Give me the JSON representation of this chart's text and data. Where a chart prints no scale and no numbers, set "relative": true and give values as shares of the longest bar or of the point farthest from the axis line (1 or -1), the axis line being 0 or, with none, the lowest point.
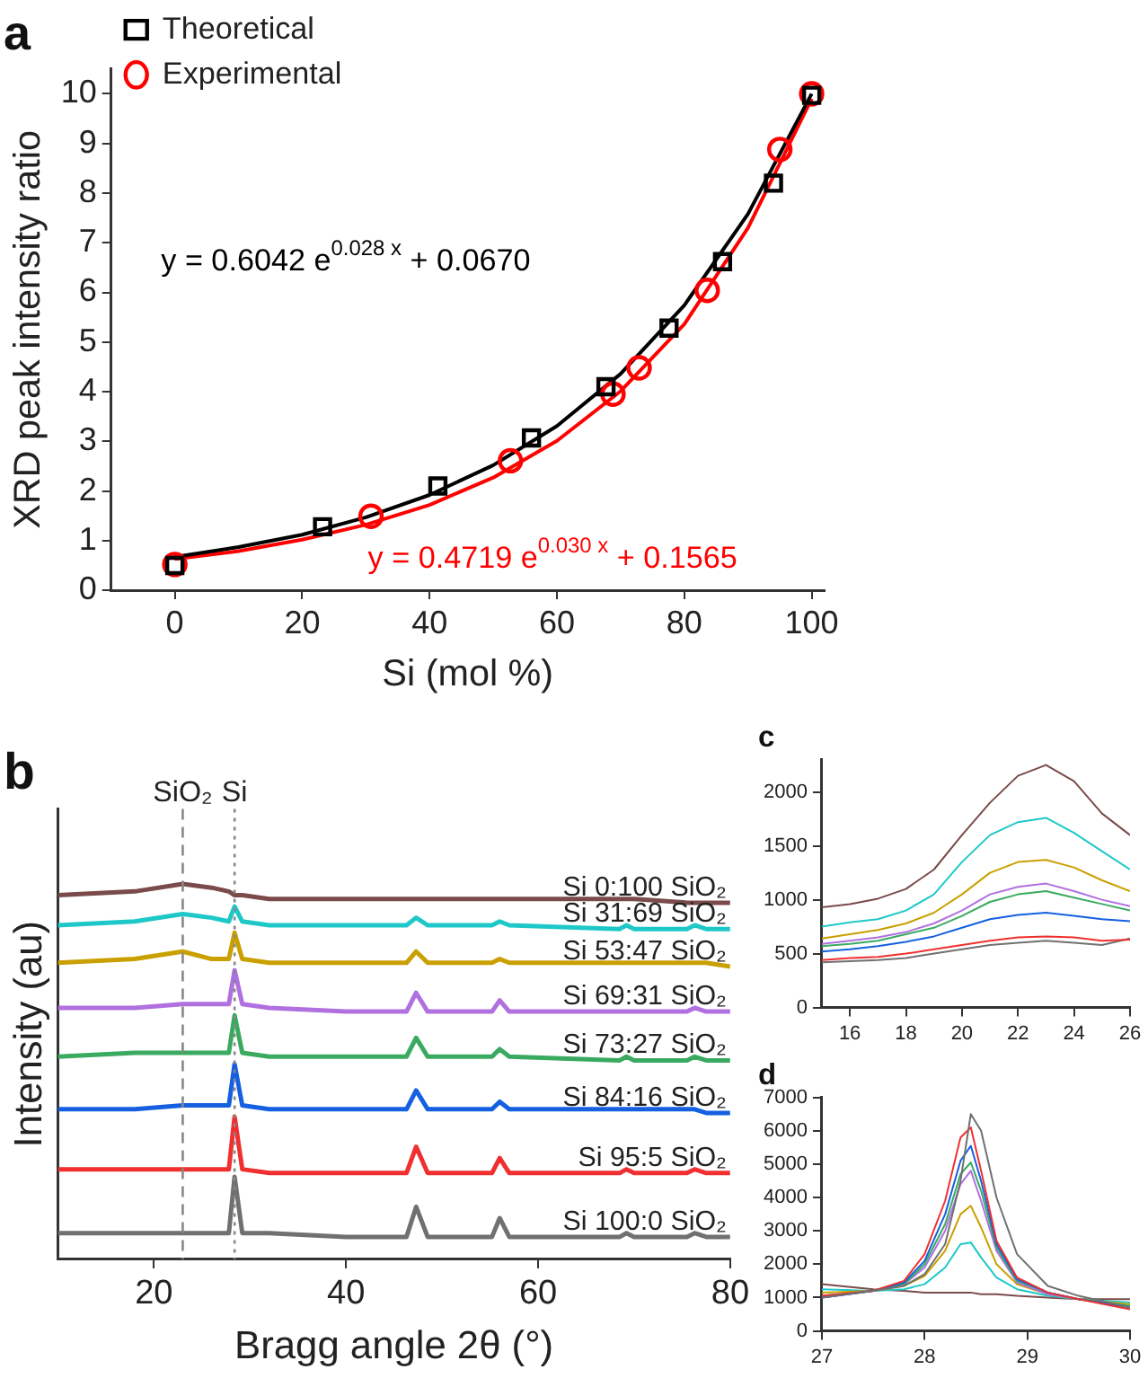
{
  "chart_data": [
    {
      "type": "scatter",
      "title": "a",
      "xlabel": "Si (mol %)",
      "ylabel": "XRD peak intensity ratio",
      "xlim": [
        -10,
        102
      ],
      "ylim": [
        0,
        10.5
      ],
      "xticks": [
        0,
        20,
        40,
        60,
        80,
        100
      ],
      "yticks": [
        0,
        1,
        2,
        3,
        4,
        5,
        6,
        7,
        8,
        9,
        10
      ],
      "legend": "top left",
      "grid": false,
      "series": [
        {
          "name": "Theoretical",
          "color": "#000000",
          "marker": "square",
          "x": [
            0,
            23.2,
            41.3,
            56,
            67.7,
            77.6,
            86,
            94,
            100
          ],
          "values": [
            0.5,
            1.28,
            2.1,
            3.07,
            4.1,
            5.28,
            6.62,
            8.2,
            9.97
          ]
        },
        {
          "name": "Experimental",
          "color": "#ff0000",
          "marker": "circle",
          "x": [
            0,
            30.8,
            52.7,
            68.8,
            72.9,
            83.6,
            95,
            100
          ],
          "values": [
            0.52,
            1.49,
            2.61,
            3.95,
            4.48,
            6.04,
            8.88,
            10
          ]
        },
        {
          "type": "line",
          "color": "#000000",
          "x": [
            0,
            10,
            20,
            30,
            40,
            50,
            60,
            70,
            80,
            90,
            100
          ],
          "values": [
            0.67,
            0.87,
            1.12,
            1.47,
            1.92,
            2.52,
            3.31,
            4.36,
            5.74,
            7.58,
            10
          ]
        },
        {
          "type": "line",
          "color": "#ff0000",
          "x": [
            0,
            10,
            20,
            30,
            40,
            50,
            60,
            70,
            80,
            90,
            100
          ],
          "values": [
            0.63,
            0.79,
            1.02,
            1.32,
            1.72,
            2.27,
            3.01,
            4.01,
            5.36,
            7.3,
            9.9
          ]
        }
      ],
      "annotations": [
        "y = 0.6042 e$^{0.028 x}$ + 0.0670",
        "y = 0.4719 e$^{0.030 x}$ + 0.1565"
      ]
    },
    {
      "type": "line",
      "title": "b",
      "xlabel": "Bragg angle 2θ (°)",
      "ylabel": "Intensity (au)",
      "relative": true,
      "xlim": [
        10,
        80
      ],
      "xticks": [
        20,
        40,
        60,
        80
      ],
      "grid": false,
      "tick_labels": "x",
      "x": [
        10,
        18,
        23,
        26,
        27.8,
        28.4,
        29.2,
        32,
        40,
        46.3,
        47.3,
        48.5,
        55.2,
        56,
        57,
        68.5,
        69.2,
        70,
        75.5,
        76.3,
        77.5,
        80
      ],
      "series": [
        {
          "name": "Si 0:100 SiO₂",
          "color": "#7b4a4a",
          "values": [
            0.97,
            0.98,
            1.0,
            0.99,
            0.98,
            0.97,
            0.97,
            0.96,
            0.96,
            0.96,
            0.96,
            0.96,
            0.96,
            0.96,
            0.96,
            0.96,
            0.96,
            0.96,
            0.95,
            0.95,
            0.95,
            0.95
          ]
        },
        {
          "name": "Si 31:69 SiO₂",
          "color": "#1fc8c8",
          "values": [
            0.89,
            0.9,
            0.92,
            0.91,
            0.9,
            0.94,
            0.9,
            0.89,
            0.89,
            0.89,
            0.91,
            0.89,
            0.89,
            0.9,
            0.89,
            0.88,
            0.89,
            0.88,
            0.88,
            0.89,
            0.88,
            0.88
          ]
        },
        {
          "name": "Si 53:47 SiO₂",
          "color": "#c9a000",
          "values": [
            0.79,
            0.8,
            0.82,
            0.8,
            0.8,
            0.87,
            0.8,
            0.79,
            0.79,
            0.79,
            0.82,
            0.79,
            0.79,
            0.8,
            0.79,
            0.79,
            0.79,
            0.79,
            0.79,
            0.79,
            0.79,
            0.78
          ]
        },
        {
          "name": "Si 69:31 SiO₂",
          "color": "#b070e0",
          "values": [
            0.67,
            0.67,
            0.68,
            0.68,
            0.68,
            0.77,
            0.68,
            0.67,
            0.66,
            0.66,
            0.71,
            0.66,
            0.66,
            0.69,
            0.66,
            0.66,
            0.66,
            0.66,
            0.66,
            0.67,
            0.66,
            0.66
          ]
        },
        {
          "name": "Si 73:27 SiO₂",
          "color": "#3aaa60",
          "values": [
            0.54,
            0.55,
            0.55,
            0.55,
            0.55,
            0.65,
            0.55,
            0.54,
            0.54,
            0.54,
            0.59,
            0.54,
            0.54,
            0.56,
            0.54,
            0.53,
            0.54,
            0.53,
            0.53,
            0.54,
            0.53,
            0.53
          ]
        },
        {
          "name": "Si 84:16 SiO₂",
          "color": "#1560e0",
          "values": [
            0.4,
            0.4,
            0.41,
            0.41,
            0.41,
            0.52,
            0.41,
            0.4,
            0.4,
            0.4,
            0.45,
            0.4,
            0.4,
            0.42,
            0.4,
            0.4,
            0.4,
            0.4,
            0.4,
            0.4,
            0.39,
            0.39
          ]
        },
        {
          "name": "Si 95:5 SiO₂",
          "color": "#f03030",
          "values": [
            0.24,
            0.24,
            0.24,
            0.24,
            0.24,
            0.38,
            0.24,
            0.23,
            0.23,
            0.23,
            0.3,
            0.23,
            0.23,
            0.27,
            0.23,
            0.23,
            0.24,
            0.23,
            0.23,
            0.24,
            0.23,
            0.23
          ]
        },
        {
          "name": "Si 100:0 SiO₂",
          "color": "#707070",
          "values": [
            0.07,
            0.07,
            0.07,
            0.07,
            0.07,
            0.22,
            0.07,
            0.07,
            0.06,
            0.06,
            0.14,
            0.06,
            0.06,
            0.11,
            0.06,
            0.06,
            0.07,
            0.06,
            0.06,
            0.07,
            0.06,
            0.06
          ]
        }
      ],
      "ref_lines": [
        {
          "axis": "x",
          "value": 23,
          "label": "SiO₂",
          "color": "#888888",
          "line_style": "dashed"
        },
        {
          "axis": "x",
          "value": 28.4,
          "label": "Si",
          "color": "#888888",
          "line_style": "dotted"
        }
      ]
    },
    {
      "type": "line",
      "title": "c",
      "xlim": [
        15,
        26
      ],
      "ylim": [
        0,
        2300
      ],
      "xticks": [
        16,
        18,
        20,
        22,
        24,
        26
      ],
      "yticks": [
        0,
        500,
        1000,
        1500,
        2000
      ],
      "grid": false,
      "x": [
        15,
        16,
        17,
        18,
        19,
        20,
        21,
        22,
        23,
        24,
        25,
        26
      ],
      "series": [
        {
          "color": "#7b4a4a",
          "values": [
            930,
            960,
            1010,
            1100,
            1280,
            1600,
            1900,
            2150,
            2250,
            2100,
            1800,
            1600
          ]
        },
        {
          "color": "#1fc8c8",
          "values": [
            750,
            790,
            820,
            900,
            1050,
            1350,
            1600,
            1720,
            1760,
            1620,
            1450,
            1280
          ]
        },
        {
          "color": "#c9a000",
          "values": [
            640,
            680,
            720,
            780,
            880,
            1050,
            1250,
            1350,
            1370,
            1300,
            1180,
            1080
          ]
        },
        {
          "color": "#b070e0",
          "values": [
            590,
            620,
            650,
            700,
            780,
            900,
            1050,
            1120,
            1150,
            1080,
            1000,
            940
          ]
        },
        {
          "color": "#3aaa60",
          "values": [
            570,
            590,
            620,
            680,
            740,
            850,
            980,
            1050,
            1080,
            1020,
            960,
            900
          ]
        },
        {
          "color": "#1560e0",
          "values": [
            520,
            540,
            570,
            610,
            660,
            740,
            820,
            860,
            880,
            850,
            820,
            800
          ]
        },
        {
          "color": "#f03030",
          "values": [
            440,
            460,
            470,
            500,
            540,
            580,
            620,
            650,
            660,
            650,
            620,
            630
          ]
        },
        {
          "color": "#707070",
          "values": [
            420,
            430,
            440,
            460,
            500,
            540,
            580,
            600,
            620,
            600,
            580,
            640
          ]
        }
      ]
    },
    {
      "type": "line",
      "title": "d",
      "xlim": [
        27,
        30
      ],
      "ylim": [
        0,
        7000
      ],
      "xticks": [
        27,
        28,
        29,
        30
      ],
      "yticks": [
        0,
        1000,
        2000,
        3000,
        4000,
        5000,
        6000,
        7000
      ],
      "grid": false,
      "x": [
        27,
        27.5,
        27.8,
        28,
        28.2,
        28.35,
        28.45,
        28.55,
        28.7,
        28.9,
        29.2,
        29.5,
        30
      ],
      "series": [
        {
          "color": "#707070",
          "values": [
            1000,
            1200,
            1350,
            1700,
            2600,
            4500,
            6500,
            6000,
            4000,
            2300,
            1350,
            1050,
            700
          ]
        },
        {
          "color": "#f03030",
          "values": [
            1050,
            1200,
            1500,
            2300,
            3900,
            5800,
            6100,
            4800,
            2700,
            1600,
            1150,
            950,
            650
          ]
        },
        {
          "color": "#1560e0",
          "values": [
            1000,
            1200,
            1450,
            2100,
            3500,
            5100,
            5550,
            4500,
            2600,
            1550,
            1150,
            950,
            700
          ]
        },
        {
          "color": "#3aaa60",
          "values": [
            1050,
            1200,
            1400,
            2000,
            3200,
            4700,
            5050,
            4200,
            2500,
            1500,
            1150,
            950,
            750
          ]
        },
        {
          "color": "#b070e0",
          "values": [
            1000,
            1200,
            1400,
            1900,
            3000,
            4400,
            4800,
            3900,
            2400,
            1450,
            1100,
            950,
            null
          ]
        },
        {
          "color": "#c9a000",
          "values": [
            1150,
            1200,
            1350,
            1650,
            2400,
            3500,
            3750,
            3100,
            2000,
            1400,
            1100,
            950,
            800
          ]
        },
        {
          "color": "#1fc8c8",
          "values": [
            1250,
            1200,
            1250,
            1400,
            1900,
            2600,
            2650,
            2200,
            1600,
            1250,
            1050,
            950,
            850
          ]
        },
        {
          "color": "#7b4a4a",
          "values": [
            1400,
            1250,
            1200,
            1150,
            1150,
            1150,
            1150,
            1100,
            1100,
            1050,
            1000,
            950,
            950
          ]
        }
      ]
    }
  ]
}
